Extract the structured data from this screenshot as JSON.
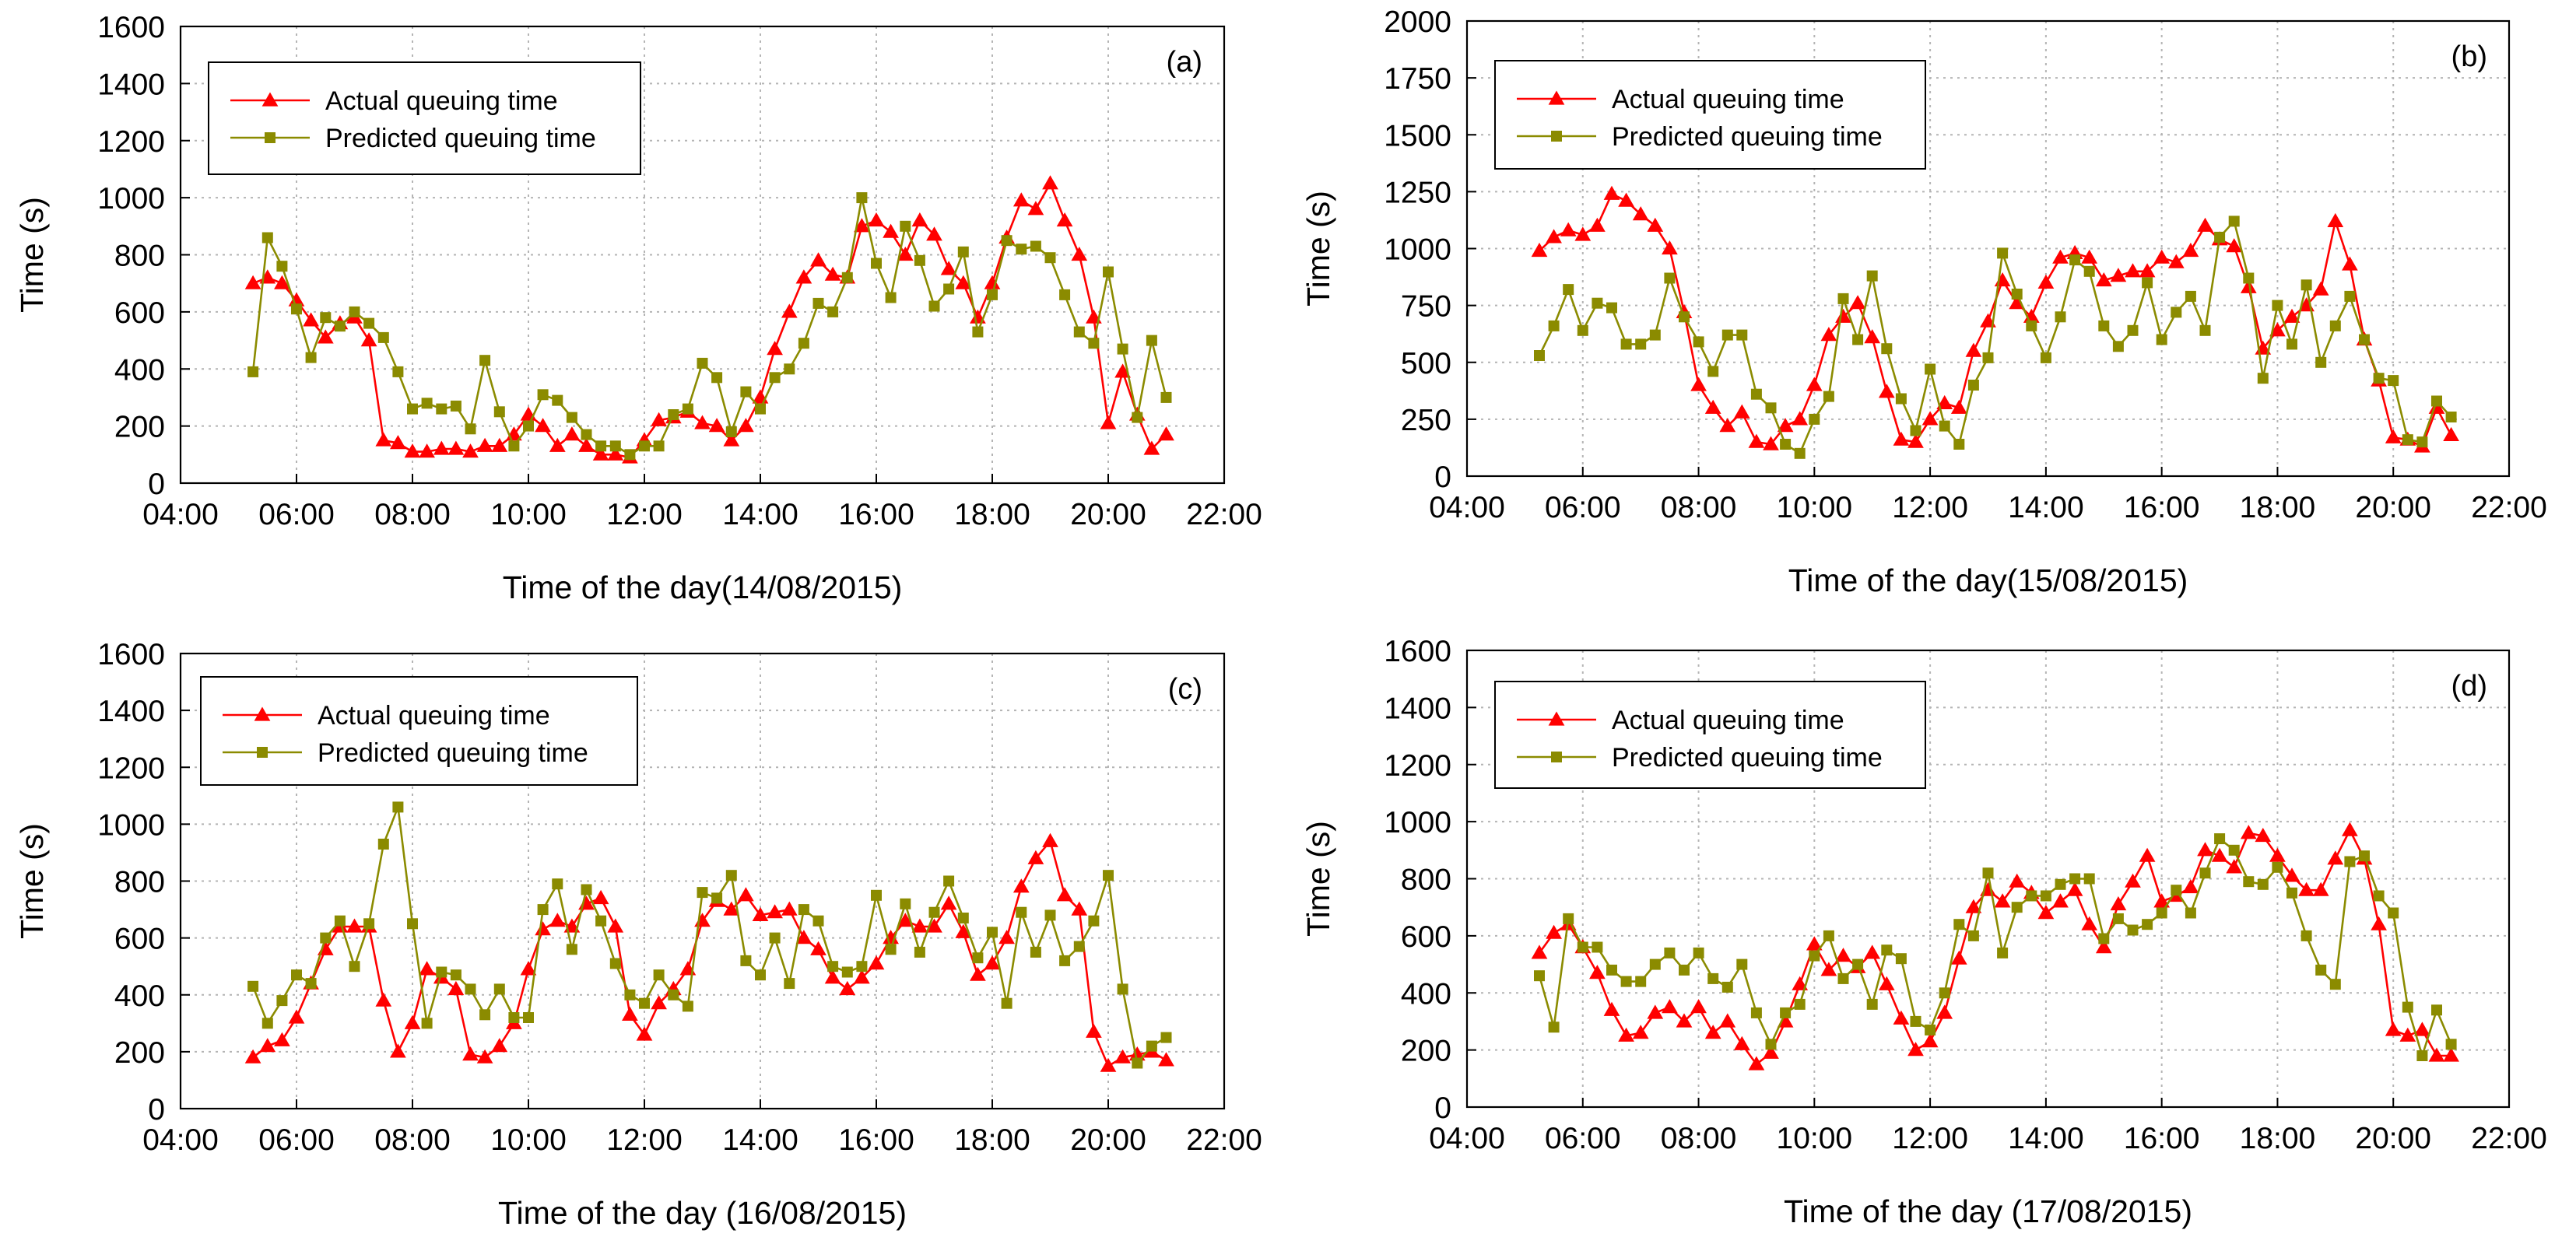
{
  "chart_data": [
    {
      "type": "line",
      "panel_label": "(a)",
      "xlabel": "Time of the day(14/08/2015)",
      "ylabel": "Time (s)",
      "xlim": [
        4,
        22
      ],
      "xticks": [
        "04:00",
        "06:00",
        "08:00",
        "10:00",
        "12:00",
        "14:00",
        "16:00",
        "18:00",
        "20:00",
        "22:00"
      ],
      "ylim": [
        0,
        1600
      ],
      "yticks": [
        "0",
        "200",
        "400",
        "600",
        "800",
        "1000",
        "1200",
        "1400",
        "1600"
      ],
      "grid": true,
      "legend_position": "top-left",
      "x": [
        5.25,
        5.5,
        5.75,
        6,
        6.25,
        6.5,
        6.75,
        7,
        7.25,
        7.5,
        7.75,
        8,
        8.25,
        8.5,
        8.75,
        9,
        9.25,
        9.5,
        9.75,
        10,
        10.25,
        10.5,
        10.75,
        11,
        11.25,
        11.5,
        11.75,
        12,
        12.25,
        12.5,
        12.75,
        13,
        13.25,
        13.5,
        13.75,
        14,
        14.25,
        14.5,
        14.75,
        15,
        15.25,
        15.5,
        15.75,
        16,
        16.25,
        16.5,
        16.75,
        17,
        17.25,
        17.5,
        17.75,
        18,
        18.25,
        18.5,
        18.75,
        19,
        19.25,
        19.5,
        19.75,
        20,
        20.25,
        20.5,
        20.75,
        21
      ],
      "series": [
        {
          "name": "Actual queuing time",
          "color": "#ff0000",
          "values": [
            700,
            720,
            700,
            640,
            570,
            510,
            560,
            580,
            500,
            150,
            140,
            110,
            110,
            120,
            120,
            110,
            130,
            130,
            170,
            240,
            200,
            130,
            170,
            130,
            100,
            100,
            90,
            150,
            220,
            230,
            250,
            210,
            200,
            150,
            200,
            300,
            470,
            600,
            720,
            780,
            730,
            720,
            900,
            920,
            880,
            800,
            920,
            870,
            750,
            700,
            580,
            700,
            860,
            990,
            960,
            1050,
            920,
            800,
            580,
            210,
            390,
            240,
            120,
            170
          ]
        },
        {
          "name": "Predicted queuing time",
          "color": "#8b8b00",
          "values": [
            390,
            860,
            760,
            610,
            440,
            580,
            550,
            600,
            560,
            510,
            390,
            260,
            280,
            260,
            270,
            190,
            430,
            250,
            130,
            200,
            310,
            290,
            230,
            170,
            130,
            130,
            100,
            130,
            130,
            240,
            260,
            420,
            370,
            180,
            320,
            260,
            370,
            400,
            490,
            630,
            600,
            720,
            1000,
            770,
            650,
            900,
            780,
            620,
            680,
            810,
            530,
            660,
            850,
            820,
            830,
            790,
            660,
            530,
            490,
            740,
            470,
            230,
            500,
            300
          ]
        }
      ]
    },
    {
      "type": "line",
      "panel_label": "(b)",
      "xlabel": "Time of the day(15/08/2015)",
      "ylabel": "Time (s)",
      "xlim": [
        4,
        22
      ],
      "xticks": [
        "04:00",
        "06:00",
        "08:00",
        "10:00",
        "12:00",
        "14:00",
        "16:00",
        "18:00",
        "20:00",
        "22:00"
      ],
      "ylim": [
        0,
        2000
      ],
      "yticks": [
        "0",
        "250",
        "500",
        "750",
        "1000",
        "1250",
        "1500",
        "1750",
        "2000"
      ],
      "grid": true,
      "legend_position": "top-left",
      "x": [
        5.25,
        5.5,
        5.75,
        6,
        6.25,
        6.5,
        6.75,
        7,
        7.25,
        7.5,
        7.75,
        8,
        8.25,
        8.5,
        8.75,
        9,
        9.25,
        9.5,
        9.75,
        10,
        10.25,
        10.5,
        10.75,
        11,
        11.25,
        11.5,
        11.75,
        12,
        12.25,
        12.5,
        12.75,
        13,
        13.25,
        13.5,
        13.75,
        14,
        14.25,
        14.5,
        14.75,
        15,
        15.25,
        15.5,
        15.75,
        16,
        16.25,
        16.5,
        16.75,
        17,
        17.25,
        17.5,
        17.75,
        18,
        18.25,
        18.5,
        18.75,
        19,
        19.25,
        19.5,
        19.75,
        20,
        20.25,
        20.5,
        20.75,
        21
      ],
      "series": [
        {
          "name": "Actual queuing time",
          "color": "#ff0000",
          "values": [
            990,
            1050,
            1080,
            1060,
            1100,
            1240,
            1210,
            1150,
            1100,
            1000,
            720,
            400,
            300,
            220,
            280,
            150,
            140,
            220,
            250,
            400,
            620,
            700,
            760,
            610,
            370,
            160,
            150,
            250,
            320,
            300,
            550,
            680,
            860,
            760,
            700,
            850,
            960,
            980,
            960,
            860,
            880,
            900,
            900,
            960,
            940,
            990,
            1100,
            1040,
            1010,
            830,
            560,
            640,
            700,
            750,
            820,
            1120,
            930,
            600,
            420,
            170,
            160,
            130,
            300,
            180
          ]
        },
        {
          "name": "Predicted queuing time",
          "color": "#8b8b00",
          "values": [
            530,
            660,
            820,
            640,
            760,
            740,
            580,
            580,
            620,
            870,
            700,
            590,
            460,
            620,
            620,
            360,
            300,
            140,
            100,
            250,
            350,
            780,
            600,
            880,
            560,
            340,
            200,
            470,
            220,
            140,
            400,
            520,
            980,
            800,
            660,
            520,
            700,
            950,
            900,
            660,
            570,
            640,
            850,
            600,
            720,
            790,
            640,
            1050,
            1120,
            870,
            430,
            750,
            580,
            840,
            500,
            660,
            790,
            600,
            430,
            420,
            160,
            150,
            330,
            260
          ]
        }
      ]
    },
    {
      "type": "line",
      "panel_label": "(c)",
      "xlabel": "Time of the day (16/08/2015)",
      "ylabel": "Time (s)",
      "xlim": [
        4,
        22
      ],
      "xticks": [
        "04:00",
        "06:00",
        "08:00",
        "10:00",
        "12:00",
        "14:00",
        "16:00",
        "18:00",
        "20:00",
        "22:00"
      ],
      "ylim": [
        0,
        1600
      ],
      "yticks": [
        "0",
        "200",
        "400",
        "600",
        "800",
        "1000",
        "1200",
        "1400",
        "1600"
      ],
      "grid": true,
      "legend_position": "top-left",
      "x": [
        5.25,
        5.5,
        5.75,
        6,
        6.25,
        6.5,
        6.75,
        7,
        7.25,
        7.5,
        7.75,
        8,
        8.25,
        8.5,
        8.75,
        9,
        9.25,
        9.5,
        9.75,
        10,
        10.25,
        10.5,
        10.75,
        11,
        11.25,
        11.5,
        11.75,
        12,
        12.25,
        12.5,
        12.75,
        13,
        13.25,
        13.5,
        13.75,
        14,
        14.25,
        14.5,
        14.75,
        15,
        15.25,
        15.5,
        15.75,
        16,
        16.25,
        16.5,
        16.75,
        17,
        17.25,
        17.5,
        17.75,
        18,
        18.25,
        18.5,
        18.75,
        19,
        19.25,
        19.5,
        19.75,
        20,
        20.25,
        20.5,
        20.75,
        21
      ],
      "series": [
        {
          "name": "Actual queuing time",
          "color": "#ff0000",
          "values": [
            180,
            220,
            240,
            320,
            440,
            560,
            640,
            640,
            640,
            380,
            200,
            300,
            490,
            460,
            420,
            190,
            180,
            220,
            300,
            490,
            630,
            660,
            640,
            720,
            740,
            640,
            330,
            260,
            370,
            420,
            490,
            660,
            730,
            700,
            750,
            680,
            690,
            700,
            600,
            560,
            460,
            420,
            460,
            510,
            600,
            660,
            640,
            640,
            720,
            620,
            470,
            510,
            600,
            780,
            880,
            940,
            750,
            700,
            270,
            150,
            180,
            190,
            200,
            170
          ]
        },
        {
          "name": "Predicted queuing time",
          "color": "#8b8b00",
          "values": [
            430,
            300,
            380,
            470,
            440,
            600,
            660,
            500,
            650,
            930,
            1060,
            650,
            300,
            480,
            470,
            420,
            330,
            420,
            320,
            320,
            700,
            790,
            560,
            770,
            660,
            510,
            400,
            370,
            470,
            400,
            360,
            760,
            740,
            820,
            520,
            470,
            600,
            440,
            700,
            660,
            500,
            480,
            500,
            750,
            560,
            720,
            550,
            690,
            800,
            670,
            530,
            620,
            370,
            690,
            550,
            680,
            520,
            570,
            660,
            820,
            420,
            160,
            220,
            250
          ]
        }
      ]
    },
    {
      "type": "line",
      "panel_label": "(d)",
      "xlabel": "Time of the day (17/08/2015)",
      "ylabel": "Time (s)",
      "xlim": [
        4,
        22
      ],
      "xticks": [
        "04:00",
        "06:00",
        "08:00",
        "10:00",
        "12:00",
        "14:00",
        "16:00",
        "18:00",
        "20:00",
        "22:00"
      ],
      "ylim": [
        0,
        1600
      ],
      "yticks": [
        "0",
        "200",
        "400",
        "600",
        "800",
        "1000",
        "1200",
        "1400",
        "1600"
      ],
      "grid": true,
      "legend_position": "top-left",
      "x": [
        5.25,
        5.5,
        5.75,
        6,
        6.25,
        6.5,
        6.75,
        7,
        7.25,
        7.5,
        7.75,
        8,
        8.25,
        8.5,
        8.75,
        9,
        9.25,
        9.5,
        9.75,
        10,
        10.25,
        10.5,
        10.75,
        11,
        11.25,
        11.5,
        11.75,
        12,
        12.25,
        12.5,
        12.75,
        13,
        13.25,
        13.5,
        13.75,
        14,
        14.25,
        14.5,
        14.75,
        15,
        15.25,
        15.5,
        15.75,
        16,
        16.25,
        16.5,
        16.75,
        17,
        17.25,
        17.5,
        17.75,
        18,
        18.25,
        18.5,
        18.75,
        19,
        19.25,
        19.5,
        19.75,
        20,
        20.25,
        20.5,
        20.75,
        21
      ],
      "series": [
        {
          "name": "Actual queuing time",
          "color": "#ff0000",
          "values": [
            540,
            610,
            640,
            560,
            470,
            340,
            250,
            260,
            330,
            350,
            300,
            350,
            260,
            300,
            220,
            150,
            190,
            300,
            430,
            570,
            480,
            530,
            490,
            540,
            430,
            310,
            200,
            230,
            330,
            520,
            700,
            760,
            720,
            790,
            750,
            680,
            720,
            760,
            640,
            560,
            710,
            790,
            880,
            720,
            740,
            770,
            900,
            880,
            840,
            960,
            950,
            880,
            810,
            760,
            760,
            870,
            970,
            870,
            640,
            270,
            250,
            270,
            180,
            180
          ]
        },
        {
          "name": "Predicted queuing time",
          "color": "#8b8b00",
          "values": [
            460,
            280,
            660,
            560,
            560,
            480,
            440,
            440,
            500,
            540,
            480,
            540,
            450,
            420,
            500,
            330,
            220,
            330,
            360,
            530,
            600,
            450,
            500,
            360,
            550,
            520,
            300,
            270,
            400,
            640,
            600,
            820,
            540,
            700,
            740,
            740,
            780,
            800,
            800,
            590,
            660,
            620,
            640,
            680,
            760,
            680,
            820,
            940,
            900,
            790,
            780,
            840,
            750,
            600,
            480,
            430,
            860,
            880,
            740,
            680,
            350,
            180,
            340,
            220
          ]
        }
      ]
    }
  ]
}
